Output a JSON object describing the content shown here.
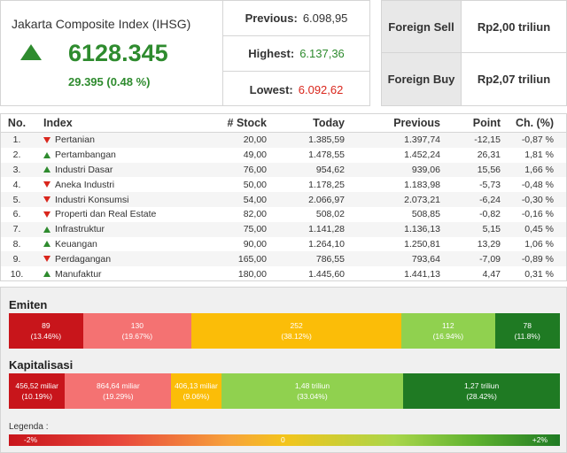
{
  "ihsg": {
    "title": "Jakarta Composite Index (IHSG)",
    "value": "6128.345",
    "change": "29.395 (0.48 %)",
    "direction": "up",
    "color_up": "#2e8b2e"
  },
  "stats": {
    "previous_label": "Previous:",
    "previous_value": "6.098,95",
    "highest_label": "Highest:",
    "highest_value": "6.137,36",
    "lowest_label": "Lowest:",
    "lowest_value": "6.092,62"
  },
  "foreign": {
    "sell_label": "Foreign Sell",
    "sell_value": "Rp2,00 triliun",
    "buy_label": "Foreign Buy",
    "buy_value": "Rp2,07 triliun"
  },
  "table": {
    "headers": {
      "no": "No.",
      "index": "Index",
      "stock": "# Stock",
      "today": "Today",
      "previous": "Previous",
      "point": "Point",
      "change": "Ch. (%)"
    },
    "rows": [
      {
        "no": "1.",
        "dir": "down",
        "index": "Pertanian",
        "stock": "20,00",
        "today": "1.385,59",
        "previous": "1.397,74",
        "point": "-12,15",
        "change": "-0,87 %"
      },
      {
        "no": "2.",
        "dir": "up",
        "index": "Pertambangan",
        "stock": "49,00",
        "today": "1.478,55",
        "previous": "1.452,24",
        "point": "26,31",
        "change": "1,81 %"
      },
      {
        "no": "3.",
        "dir": "up",
        "index": "Industri Dasar",
        "stock": "76,00",
        "today": "954,62",
        "previous": "939,06",
        "point": "15,56",
        "change": "1,66 %"
      },
      {
        "no": "4.",
        "dir": "down",
        "index": "Aneka Industri",
        "stock": "50,00",
        "today": "1.178,25",
        "previous": "1.183,98",
        "point": "-5,73",
        "change": "-0,48 %"
      },
      {
        "no": "5.",
        "dir": "down",
        "index": "Industri Konsumsi",
        "stock": "54,00",
        "today": "2.066,97",
        "previous": "2.073,21",
        "point": "-6,24",
        "change": "-0,30 %"
      },
      {
        "no": "6.",
        "dir": "down",
        "index": "Properti dan Real Estate",
        "stock": "82,00",
        "today": "508,02",
        "previous": "508,85",
        "point": "-0,82",
        "change": "-0,16 %"
      },
      {
        "no": "7.",
        "dir": "up",
        "index": "Infrastruktur",
        "stock": "75,00",
        "today": "1.141,28",
        "previous": "1.136,13",
        "point": "5,15",
        "change": "0,45 %"
      },
      {
        "no": "8.",
        "dir": "up",
        "index": "Keuangan",
        "stock": "90,00",
        "today": "1.264,10",
        "previous": "1.250,81",
        "point": "13,29",
        "change": "1,06 %"
      },
      {
        "no": "9.",
        "dir": "down",
        "index": "Perdagangan",
        "stock": "165,00",
        "today": "786,55",
        "previous": "793,64",
        "point": "-7,09",
        "change": "-0,89 %"
      },
      {
        "no": "10.",
        "dir": "up",
        "index": "Manufaktur",
        "stock": "180,00",
        "today": "1.445,60",
        "previous": "1.441,13",
        "point": "4,47",
        "change": "0,31 %"
      }
    ]
  },
  "emiten": {
    "title": "Emiten",
    "segments": [
      {
        "value": "89",
        "pct": "(13.46%)",
        "share": 13.46,
        "color": "#c8151b"
      },
      {
        "value": "130",
        "pct": "(19.67%)",
        "share": 19.67,
        "color": "#f47272"
      },
      {
        "value": "252",
        "pct": "(38.12%)",
        "share": 38.12,
        "color": "#fbbd08"
      },
      {
        "value": "112",
        "pct": "(16.94%)",
        "share": 16.94,
        "color": "#90d14f"
      },
      {
        "value": "78",
        "pct": "(11.8%)",
        "share": 11.8,
        "color": "#1f7a23"
      }
    ]
  },
  "kapitalisasi": {
    "title": "Kapitalisasi",
    "segments": [
      {
        "value": "456,52 miliar",
        "pct": "(10.19%)",
        "share": 10.19,
        "color": "#c8151b"
      },
      {
        "value": "864,64 miliar",
        "pct": "(19.29%)",
        "share": 19.29,
        "color": "#f47272"
      },
      {
        "value": "406,13 miliar",
        "pct": "(9.06%)",
        "share": 9.06,
        "color": "#fbbd08"
      },
      {
        "value": "1,48 triliun",
        "pct": "(33.04%)",
        "share": 33.04,
        "color": "#90d14f"
      },
      {
        "value": "1,27 triliun",
        "pct": "(28.42%)",
        "share": 28.42,
        "color": "#1f7a23"
      }
    ]
  },
  "legend": {
    "title": "Legenda :",
    "left": "-2%",
    "center": "0",
    "right": "+2%"
  }
}
